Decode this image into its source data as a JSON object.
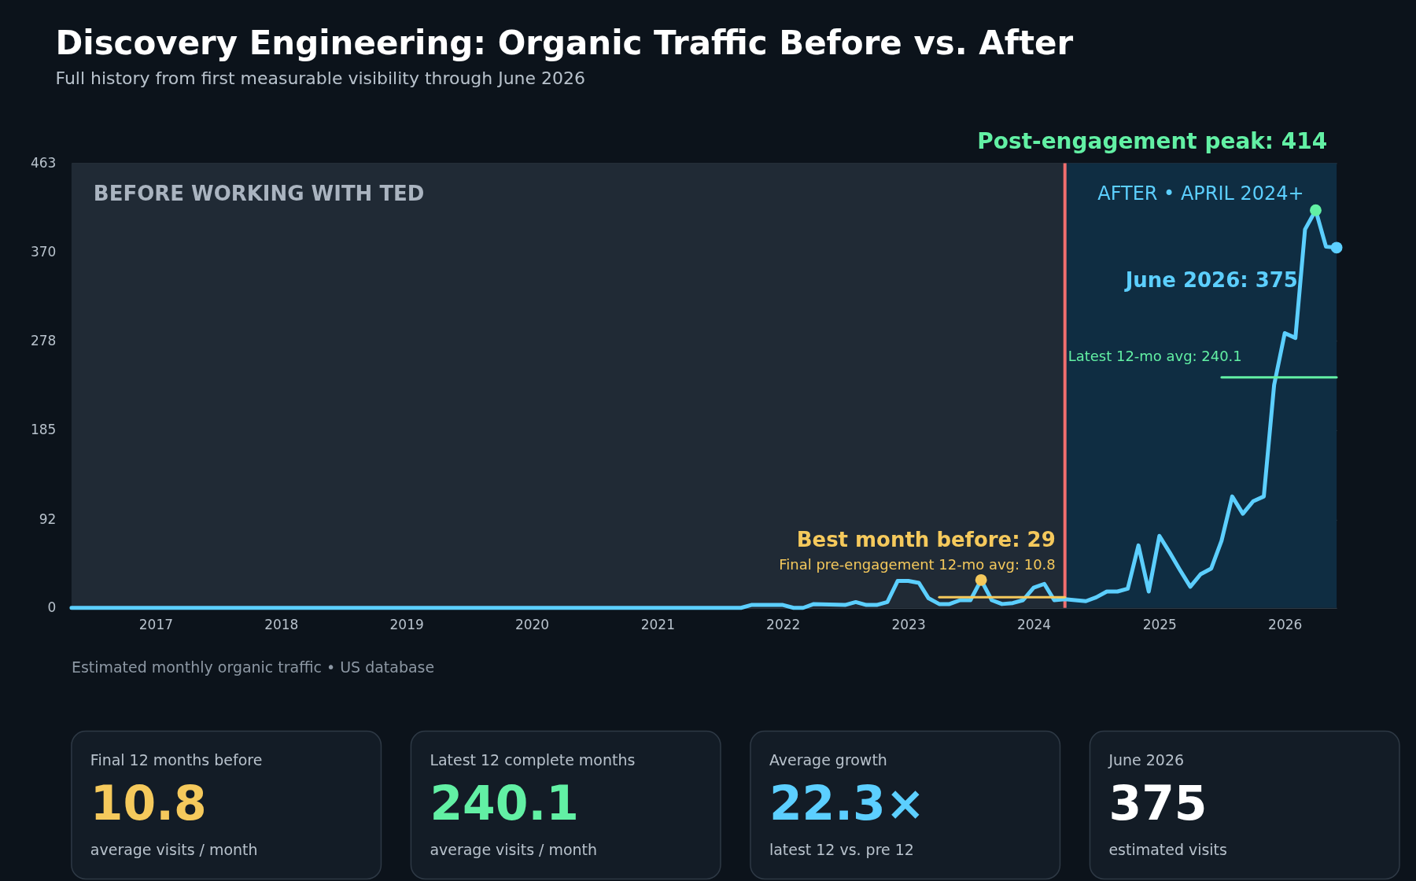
{
  "chart_data": [
    {
      "type": "line",
      "title": "Discovery Engineering: Organic Traffic Before vs. After",
      "subtitle": "Full history from first measurable visibility through June 2026",
      "x": [
        "2016-05",
        "2021-09",
        "2021-10",
        "2022-01",
        "2022-02",
        "2022-03",
        "2022-04",
        "2022-07",
        "2022-08",
        "2022-09",
        "2022-10",
        "2022-11",
        "2022-12",
        "2023-01",
        "2023-02",
        "2023-03",
        "2023-04",
        "2023-05",
        "2023-06",
        "2023-07",
        "2023-08",
        "2023-09",
        "2023-10",
        "2023-11",
        "2023-12",
        "2024-01",
        "2024-02",
        "2024-03",
        "2024-04",
        "2024-05",
        "2024-06",
        "2024-07",
        "2024-08",
        "2024-09",
        "2024-10",
        "2024-11",
        "2024-12",
        "2025-01",
        "2025-02",
        "2025-03",
        "2025-04",
        "2025-05",
        "2025-06",
        "2025-07",
        "2025-08",
        "2025-09",
        "2025-10",
        "2025-11",
        "2025-12",
        "2026-01",
        "2026-02",
        "2026-03",
        "2026-04",
        "2026-05",
        "2026-06"
      ],
      "series": [
        {
          "type": "line",
          "color": "#5ccfff",
          "values": [
            0,
            0,
            3,
            3,
            0,
            0,
            4,
            3,
            6,
            3,
            3,
            6,
            28,
            28,
            26,
            10,
            4,
            4,
            8,
            8,
            29,
            8,
            4,
            5,
            8,
            21,
            25,
            8,
            9,
            8,
            7,
            11,
            17,
            17,
            20,
            65,
            17,
            75,
            57,
            40,
            22,
            35,
            41,
            70,
            116,
            98,
            111,
            116,
            232,
            286,
            281,
            394,
            414,
            376,
            375
          ]
        },
        {
          "type": "line",
          "color": "#f5c95c",
          "x": [
            "2023-04",
            "2024-04"
          ],
          "values": [
            11,
            11
          ]
        },
        {
          "type": "line",
          "color": "#62f0a4",
          "x": [
            "2025-07",
            "2026-06"
          ],
          "values": [
            240,
            240
          ]
        },
        {
          "type": "scatter",
          "color": "#f5c95c",
          "x": [
            "2023-08"
          ],
          "values": [
            29
          ]
        },
        {
          "type": "scatter",
          "color": "#62f0a4",
          "x": [
            "2026-04"
          ],
          "values": [
            414
          ]
        },
        {
          "type": "scatter",
          "color": "#5ccfff",
          "x": [
            "2026-06"
          ],
          "values": [
            375
          ]
        }
      ],
      "xlim": [
        "2016-05",
        "2026-06"
      ],
      "xticks": [
        {
          "value": "2017",
          "label": "2017"
        },
        {
          "value": "2018",
          "label": "2018"
        },
        {
          "value": "2019",
          "label": "2019"
        },
        {
          "value": "2020",
          "label": "2020"
        },
        {
          "value": "2021",
          "label": "2021"
        },
        {
          "value": "2022",
          "label": "2022"
        },
        {
          "value": "2023",
          "label": "2023"
        },
        {
          "value": "2024",
          "label": "2024"
        },
        {
          "value": "2025",
          "label": "2025"
        },
        {
          "value": "2026",
          "label": "2026"
        }
      ],
      "ylim": [
        0,
        463
      ],
      "yticks": [
        0,
        92,
        185,
        278,
        370,
        463
      ],
      "bands": [
        {
          "axis": "x",
          "from": "2016-05",
          "to": "2024-04",
          "label": "BEFORE WORKING WITH TED",
          "color": "#202a35"
        },
        {
          "axis": "x",
          "from": "2024-04",
          "to": "2026-06",
          "label": "AFTER • APRIL 2024+",
          "color": "#0f2d42"
        }
      ],
      "ref_lines": [
        {
          "axis": "x",
          "value": "2024-04",
          "color": "#f06e6e"
        }
      ],
      "annotations": [
        "Post-engagement peak: 414",
        "Estimated monthly organic traffic • US database",
        "Best month before: 29",
        "Final pre-engagement 12-mo avg: 10.8",
        "Latest 12-mo avg: 240.1",
        "June 2026: 375"
      ],
      "grid": "y",
      "line_style": "solid"
    },
    {
      "type": "other",
      "title": "Final 12 months before",
      "colors": [
        "#f5c95c"
      ],
      "annotations": [
        "10.8",
        "average visits / month"
      ]
    },
    {
      "type": "other",
      "title": "Latest 12 complete months",
      "colors": [
        "#62f0a4"
      ],
      "annotations": [
        "240.1",
        "average visits / month"
      ]
    },
    {
      "type": "other",
      "title": "Average growth",
      "colors": [
        "#5ccfff"
      ],
      "annotations": [
        "22.3×",
        "latest 12 vs. pre 12"
      ]
    },
    {
      "type": "other",
      "title": "June 2026",
      "colors": [
        "#ffffff"
      ],
      "annotations": [
        "375",
        "estimated visits"
      ]
    }
  ]
}
